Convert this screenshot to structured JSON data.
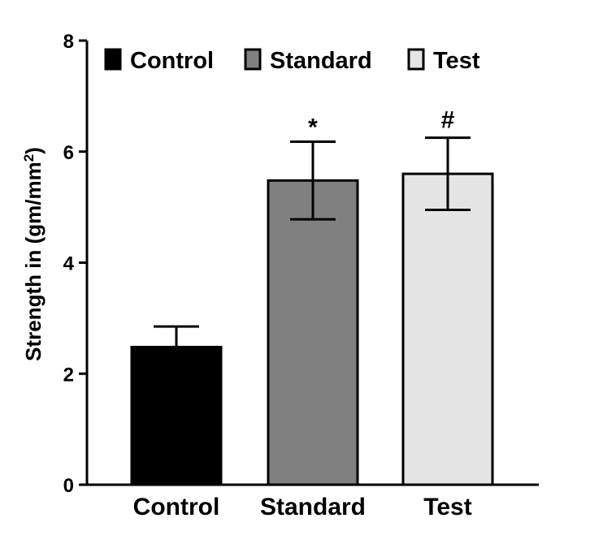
{
  "chart_data": {
    "type": "bar",
    "title": "",
    "xlabel": "",
    "ylabel": "Strength in (gm/mm",
    "ylabel_superscript": "2",
    "ylabel_suffix": ")",
    "ylim": [
      0,
      8
    ],
    "yticks": [
      "0",
      "2",
      "4",
      "6",
      "8"
    ],
    "categories": [
      "Control",
      "Standard",
      "Test"
    ],
    "values": [
      2.48,
      5.48,
      5.6
    ],
    "errors": [
      0.37,
      0.7,
      0.65
    ],
    "annotations": [
      "",
      "*",
      "#"
    ],
    "colors": [
      "#000000",
      "#808080",
      "#e5e5e5"
    ],
    "legend": {
      "placement": "top",
      "entries": [
        "Control",
        "Standard",
        "Test"
      ]
    },
    "grid": false
  }
}
